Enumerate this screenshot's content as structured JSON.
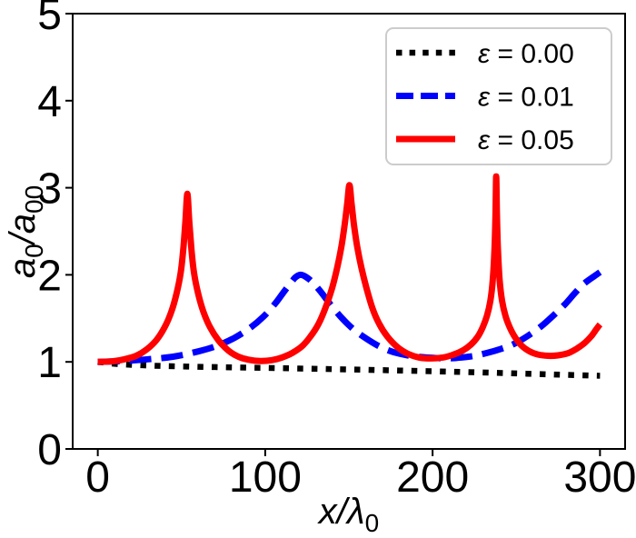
{
  "figure": {
    "background": "#ffffff",
    "spine_color": "#000000",
    "tick_color": "#000000"
  },
  "chart_data": {
    "type": "line",
    "title": "",
    "xlabel": "x/λ0",
    "xlabel_parts": {
      "main": "x/λ",
      "sub": "0"
    },
    "ylabel": "a0/a00",
    "ylabel_parts": {
      "a1": "a",
      "sub1": "0",
      "mid": "/a",
      "sub2": "00"
    },
    "xlim": [
      -15,
      315
    ],
    "ylim": [
      0,
      5
    ],
    "xticks": [
      0,
      100,
      200,
      300
    ],
    "xtick_labels": [
      "0",
      "100",
      "200",
      "300"
    ],
    "yticks": [
      0,
      1,
      2,
      3,
      4,
      5
    ],
    "ytick_labels": [
      "0",
      "1",
      "2",
      "3",
      "4",
      "5"
    ],
    "grid": false,
    "legend": {
      "position": "upper right",
      "border_color": "#cccccc",
      "bg": "#ffffff"
    },
    "series": [
      {
        "name": "ε = 0.00",
        "symbol": "ε",
        "rest": " = 0.00",
        "color": "#000000",
        "style": "dotted",
        "width": 6.5,
        "points": [
          [
            0,
            1.0
          ],
          [
            12,
            0.975
          ],
          [
            25,
            0.962
          ],
          [
            40,
            0.952
          ],
          [
            60,
            0.944
          ],
          [
            80,
            0.937
          ],
          [
            100,
            0.931
          ],
          [
            120,
            0.924
          ],
          [
            140,
            0.917
          ],
          [
            160,
            0.909
          ],
          [
            180,
            0.901
          ],
          [
            200,
            0.892
          ],
          [
            220,
            0.883
          ],
          [
            240,
            0.873
          ],
          [
            260,
            0.862
          ],
          [
            280,
            0.851
          ],
          [
            300,
            0.84
          ]
        ]
      },
      {
        "name": "ε = 0.01",
        "symbol": "ε",
        "rest": " = 0.01",
        "color": "#0000ff",
        "style": "dashed",
        "width": 7,
        "points": [
          [
            0,
            1.0
          ],
          [
            15,
            1.01
          ],
          [
            30,
            1.03
          ],
          [
            45,
            1.06
          ],
          [
            60,
            1.12
          ],
          [
            72,
            1.19
          ],
          [
            82,
            1.28
          ],
          [
            91,
            1.39
          ],
          [
            99,
            1.52
          ],
          [
            106,
            1.67
          ],
          [
            111,
            1.8
          ],
          [
            115,
            1.9
          ],
          [
            118,
            1.97
          ],
          [
            121,
            2.0
          ],
          [
            124,
            1.98
          ],
          [
            128,
            1.92
          ],
          [
            133,
            1.81
          ],
          [
            139,
            1.66
          ],
          [
            146,
            1.5
          ],
          [
            153,
            1.37
          ],
          [
            161,
            1.26
          ],
          [
            169,
            1.17
          ],
          [
            177,
            1.11
          ],
          [
            185,
            1.075
          ],
          [
            193,
            1.055
          ],
          [
            201,
            1.045
          ],
          [
            209,
            1.04
          ],
          [
            217,
            1.05
          ],
          [
            225,
            1.07
          ],
          [
            233,
            1.105
          ],
          [
            241,
            1.15
          ],
          [
            249,
            1.21
          ],
          [
            257,
            1.3
          ],
          [
            265,
            1.41
          ],
          [
            272,
            1.53
          ],
          [
            279,
            1.66
          ],
          [
            285,
            1.79
          ],
          [
            290,
            1.89
          ],
          [
            294,
            1.95
          ],
          [
            297,
            1.99
          ],
          [
            300,
            2.03
          ]
        ]
      },
      {
        "name": "ε = 0.05",
        "symbol": "ε",
        "rest": " = 0.05",
        "color": "#ff0000",
        "style": "solid",
        "width": 7,
        "points": [
          [
            0,
            1.0
          ],
          [
            8,
            1.005
          ],
          [
            16,
            1.03
          ],
          [
            23,
            1.07
          ],
          [
            29,
            1.14
          ],
          [
            35,
            1.25
          ],
          [
            40,
            1.4
          ],
          [
            44,
            1.58
          ],
          [
            47,
            1.78
          ],
          [
            49.5,
            2.02
          ],
          [
            51,
            2.28
          ],
          [
            52.3,
            2.6
          ],
          [
            53.5,
            2.93
          ],
          [
            54.7,
            2.6
          ],
          [
            56,
            2.28
          ],
          [
            57.5,
            2.02
          ],
          [
            60,
            1.78
          ],
          [
            63,
            1.58
          ],
          [
            67,
            1.4
          ],
          [
            72,
            1.25
          ],
          [
            78,
            1.13
          ],
          [
            84,
            1.06
          ],
          [
            90,
            1.025
          ],
          [
            97,
            1.01
          ],
          [
            104,
            1.02
          ],
          [
            110,
            1.05
          ],
          [
            116,
            1.1
          ],
          [
            122,
            1.18
          ],
          [
            127,
            1.29
          ],
          [
            132,
            1.44
          ],
          [
            136,
            1.62
          ],
          [
            140,
            1.85
          ],
          [
            143,
            2.08
          ],
          [
            145.5,
            2.32
          ],
          [
            147.5,
            2.58
          ],
          [
            149,
            2.82
          ],
          [
            150.3,
            3.03
          ],
          [
            151.6,
            2.82
          ],
          [
            153,
            2.58
          ],
          [
            155,
            2.32
          ],
          [
            157.5,
            2.08
          ],
          [
            160.5,
            1.85
          ],
          [
            164,
            1.62
          ],
          [
            168,
            1.44
          ],
          [
            173,
            1.29
          ],
          [
            179,
            1.17
          ],
          [
            185,
            1.095
          ],
          [
            192,
            1.05
          ],
          [
            199,
            1.04
          ],
          [
            206,
            1.05
          ],
          [
            212,
            1.08
          ],
          [
            218,
            1.13
          ],
          [
            223,
            1.2
          ],
          [
            227,
            1.29
          ],
          [
            230,
            1.4
          ],
          [
            232.5,
            1.53
          ],
          [
            234.5,
            1.7
          ],
          [
            236,
            1.95
          ],
          [
            237,
            2.3
          ],
          [
            237.6,
            2.7
          ],
          [
            238,
            3.13
          ],
          [
            238.4,
            2.7
          ],
          [
            239,
            2.3
          ],
          [
            240,
            1.95
          ],
          [
            241.5,
            1.7
          ],
          [
            243.5,
            1.53
          ],
          [
            246,
            1.4
          ],
          [
            249,
            1.29
          ],
          [
            253,
            1.19
          ],
          [
            258,
            1.12
          ],
          [
            263,
            1.085
          ],
          [
            269,
            1.07
          ],
          [
            275,
            1.075
          ],
          [
            281,
            1.1
          ],
          [
            286,
            1.15
          ],
          [
            291,
            1.22
          ],
          [
            295,
            1.3
          ],
          [
            298,
            1.38
          ],
          [
            300,
            1.43
          ]
        ]
      }
    ]
  }
}
